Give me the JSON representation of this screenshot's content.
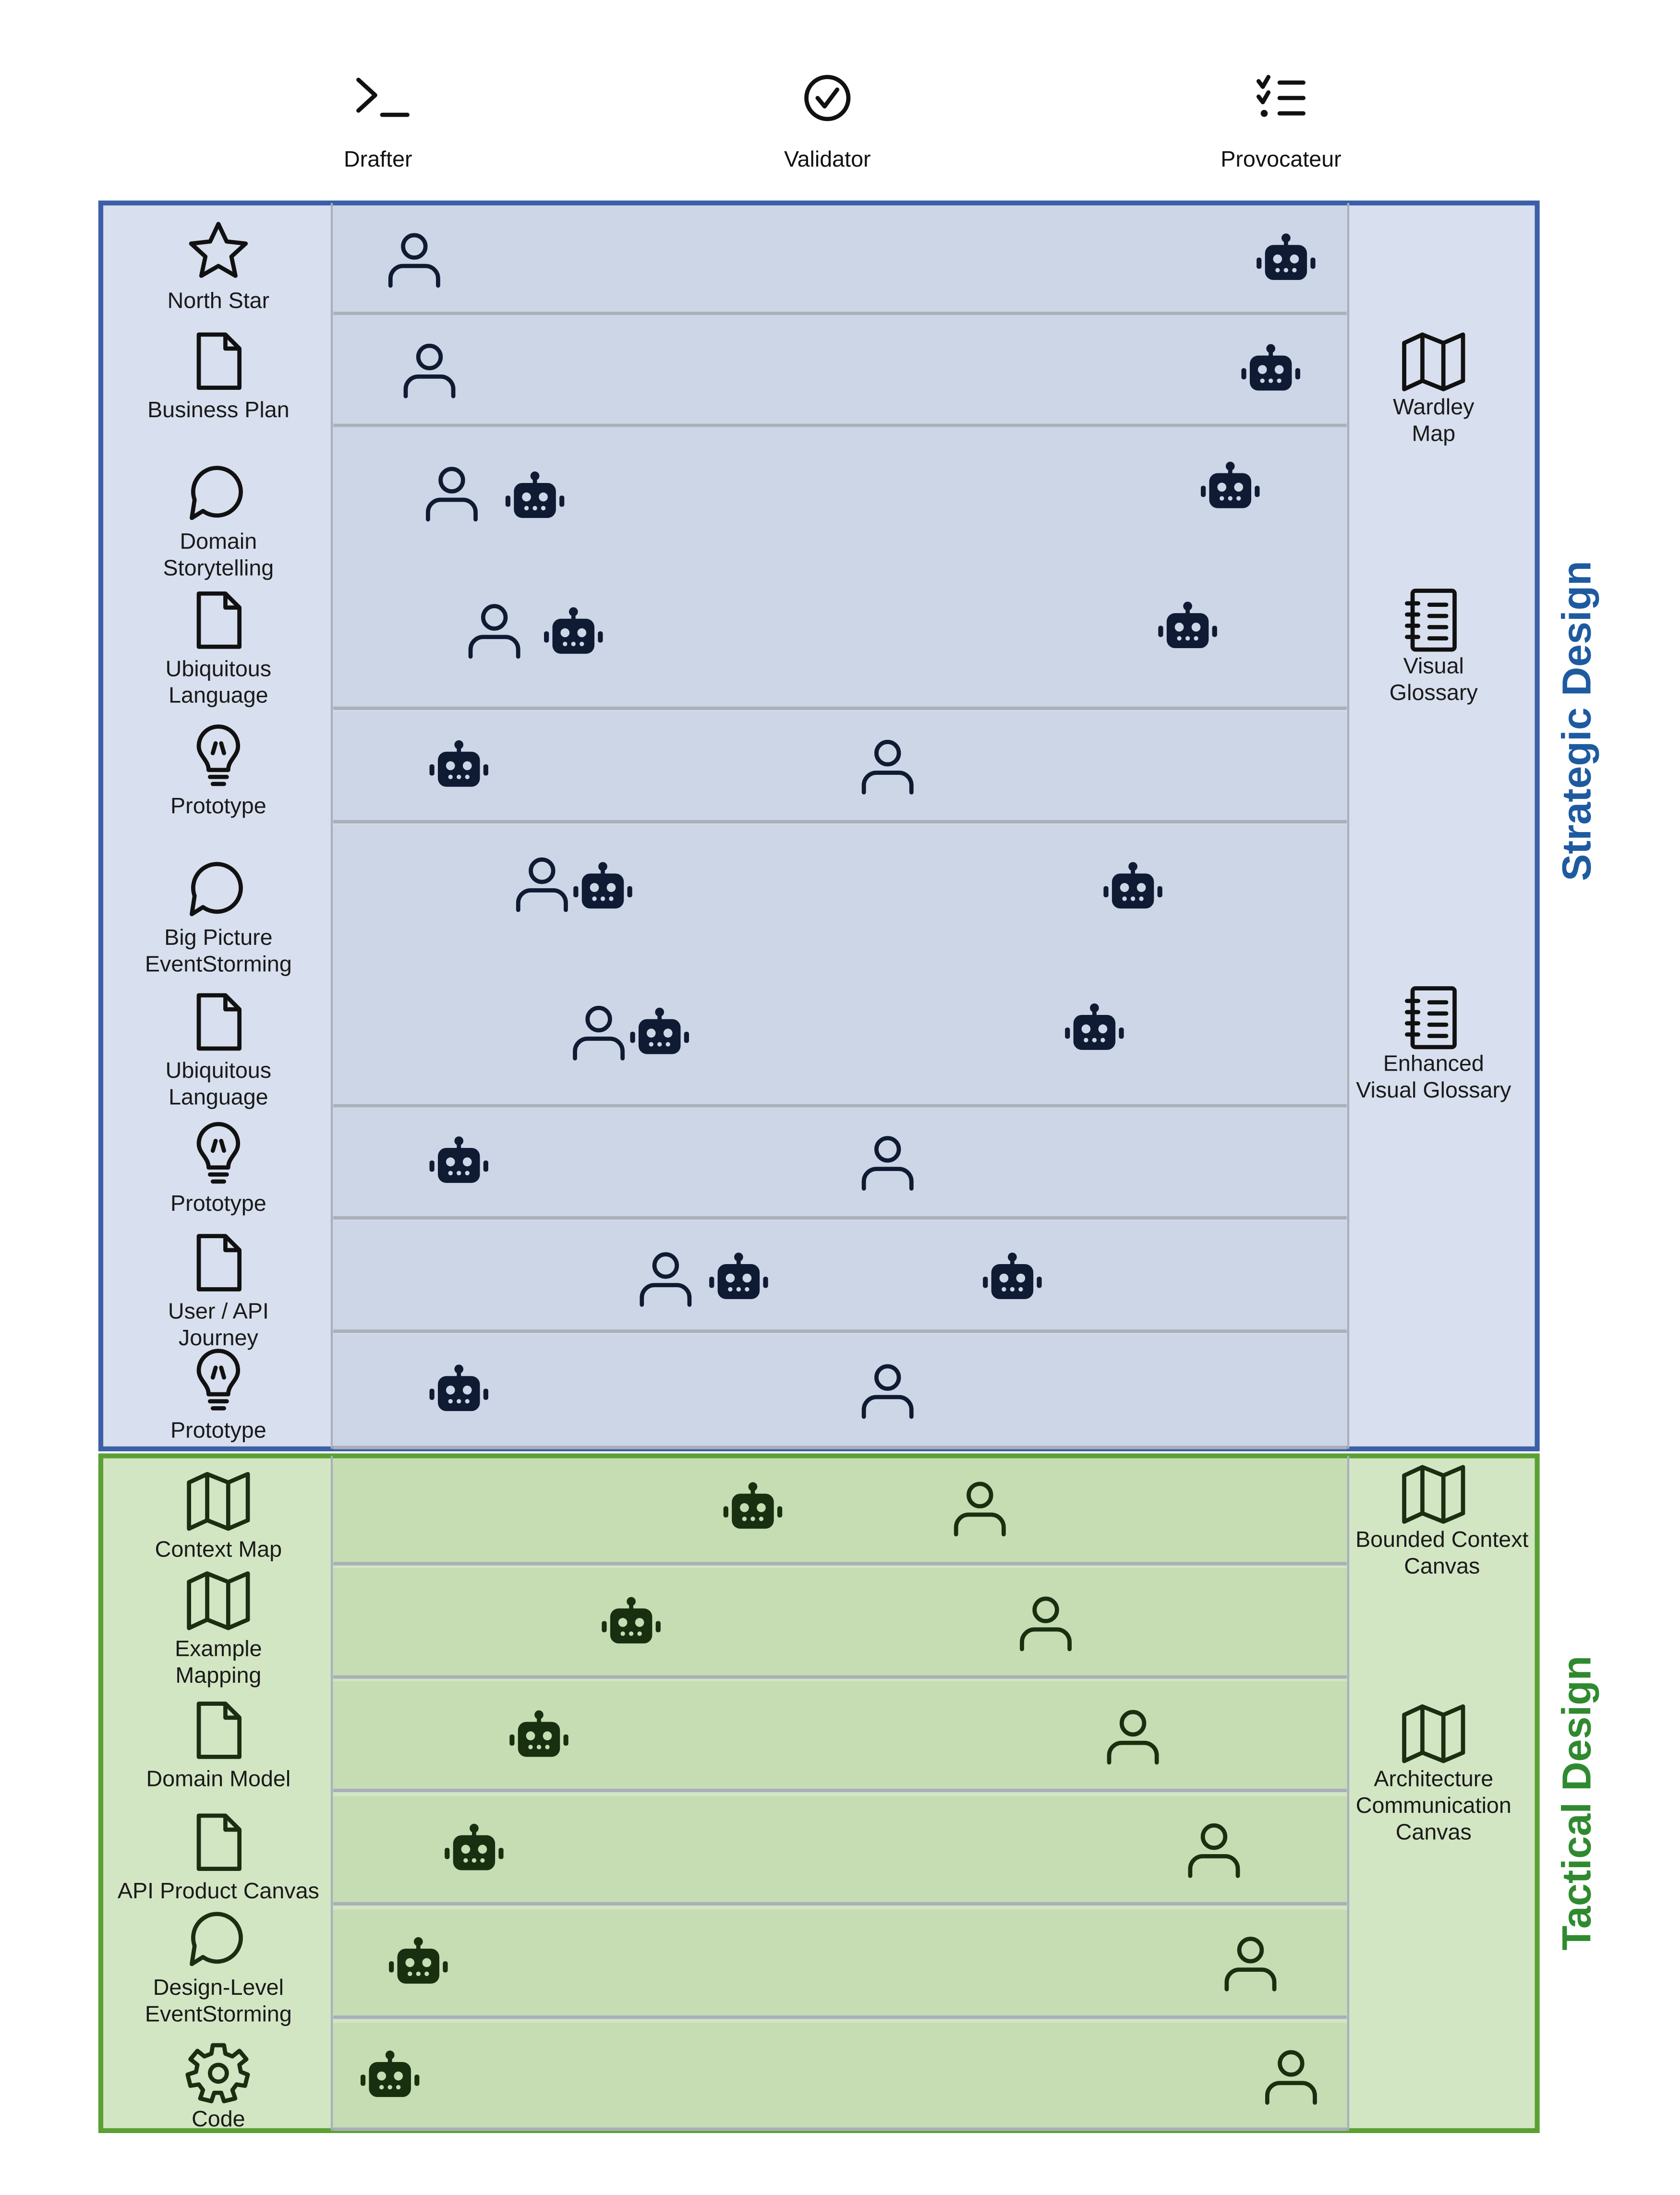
{
  "colors": {
    "strategic_border": "#3c5fa8",
    "strategic_fill": "#d8dfee",
    "strategic_lane": "#cdd6e7",
    "strategic_title": "#1e5aa0",
    "tactical_border": "#5aa033",
    "tactical_fill": "#d3e6c3",
    "tactical_lane": "#c6dcb3",
    "tactical_title": "#2f8a2f",
    "separator": "#a9b0b9"
  },
  "roles": [
    {
      "name": "Drafter",
      "icon": "terminal-prompt-icon"
    },
    {
      "name": "Validator",
      "icon": "check-circle-icon"
    },
    {
      "name": "Provocateur",
      "icon": "checklist-icon"
    }
  ],
  "sections": [
    {
      "title": "Strategic Design",
      "theme": "strategic",
      "left_items": [
        {
          "label": [
            "North Star"
          ],
          "icon": "star-icon"
        },
        {
          "label": [
            "Business Plan"
          ],
          "icon": "document-icon"
        },
        {
          "label": [
            "Domain",
            "Storytelling"
          ],
          "icon": "chat-bubble-icon"
        },
        {
          "label": [
            "Ubiquitous",
            "Language"
          ],
          "icon": "document-icon"
        },
        {
          "label": [
            "Prototype"
          ],
          "icon": "lightbulb-icon"
        },
        {
          "label": [
            "Big Picture",
            "EventStorming"
          ],
          "icon": "chat-bubble-icon"
        },
        {
          "label": [
            "Ubiquitous",
            "Language"
          ],
          "icon": "document-icon"
        },
        {
          "label": [
            "Prototype"
          ],
          "icon": "lightbulb-icon"
        },
        {
          "label": [
            "User / API",
            "Journey"
          ],
          "icon": "document-icon"
        },
        {
          "label": [
            "Prototype"
          ],
          "icon": "lightbulb-icon"
        }
      ],
      "right_items": [
        {
          "label": [
            "Wardley",
            "Map"
          ],
          "icon": "map-icon"
        },
        {
          "label": [
            "Visual",
            "Glossary"
          ],
          "icon": "notebook-icon"
        },
        {
          "label": [
            "Enhanced",
            "Visual Glossary"
          ],
          "icon": "notebook-icon"
        }
      ],
      "lanes": [
        {
          "markers": [
            {
              "type": "person",
              "pos": 0.08
            },
            {
              "type": "robot",
              "pos": 0.94
            }
          ]
        },
        {
          "markers": [
            {
              "type": "person",
              "pos": 0.095
            },
            {
              "type": "robot",
              "pos": 0.925
            }
          ]
        },
        {
          "markers": [
            {
              "type": "person",
              "pos": 0.117
            },
            {
              "type": "robot",
              "pos": 0.199
            },
            {
              "type": "robot",
              "pos": 0.885
            }
          ],
          "spans": 2
        },
        {
          "markers": [
            {
              "type": "person",
              "pos": 0.159
            },
            {
              "type": "robot",
              "pos": 0.237
            },
            {
              "type": "robot",
              "pos": 0.843
            }
          ]
        },
        {
          "markers": [
            {
              "type": "robot",
              "pos": 0.124
            },
            {
              "type": "person",
              "pos": 0.547
            }
          ]
        },
        {
          "markers": [
            {
              "type": "person",
              "pos": 0.206
            },
            {
              "type": "robot",
              "pos": 0.266
            },
            {
              "type": "robot",
              "pos": 0.789
            }
          ],
          "spans": 2
        },
        {
          "markers": [
            {
              "type": "person",
              "pos": 0.262
            },
            {
              "type": "robot",
              "pos": 0.322
            },
            {
              "type": "robot",
              "pos": 0.751
            }
          ]
        },
        {
          "markers": [
            {
              "type": "robot",
              "pos": 0.124
            },
            {
              "type": "person",
              "pos": 0.547
            }
          ]
        },
        {
          "markers": [
            {
              "type": "person",
              "pos": 0.328
            },
            {
              "type": "robot",
              "pos": 0.4
            },
            {
              "type": "robot",
              "pos": 0.67
            }
          ]
        },
        {
          "markers": [
            {
              "type": "robot",
              "pos": 0.124
            },
            {
              "type": "person",
              "pos": 0.547
            }
          ]
        }
      ]
    },
    {
      "title": "Tactical Design",
      "theme": "tactical",
      "left_items": [
        {
          "label": [
            "Context Map"
          ],
          "icon": "map-icon"
        },
        {
          "label": [
            "Example",
            "Mapping"
          ],
          "icon": "map-icon"
        },
        {
          "label": [
            "Domain Model"
          ],
          "icon": "document-icon"
        },
        {
          "label": [
            "API Product Canvas"
          ],
          "icon": "document-icon"
        },
        {
          "label": [
            "Design-Level",
            "EventStorming"
          ],
          "icon": "chat-bubble-icon"
        },
        {
          "label": [
            "Code"
          ],
          "icon": "gear-icon"
        }
      ],
      "right_items": [
        {
          "label": [
            "Bounded Context",
            "Canvas"
          ],
          "icon": "map-icon"
        },
        {
          "label": [
            "Architecture",
            "Communication",
            "Canvas"
          ],
          "icon": "map-icon"
        }
      ],
      "lanes": [
        {
          "markers": [
            {
              "type": "robot",
              "pos": 0.414
            },
            {
              "type": "person",
              "pos": 0.638
            }
          ]
        },
        {
          "markers": [
            {
              "type": "robot",
              "pos": 0.294
            },
            {
              "type": "person",
              "pos": 0.703
            }
          ]
        },
        {
          "markers": [
            {
              "type": "robot",
              "pos": 0.203
            },
            {
              "type": "person",
              "pos": 0.789
            }
          ]
        },
        {
          "markers": [
            {
              "type": "robot",
              "pos": 0.139
            },
            {
              "type": "person",
              "pos": 0.869
            }
          ]
        },
        {
          "markers": [
            {
              "type": "robot",
              "pos": 0.084
            },
            {
              "type": "person",
              "pos": 0.905
            }
          ]
        },
        {
          "markers": [
            {
              "type": "robot",
              "pos": 0.056
            },
            {
              "type": "person",
              "pos": 0.945
            }
          ]
        }
      ]
    }
  ]
}
